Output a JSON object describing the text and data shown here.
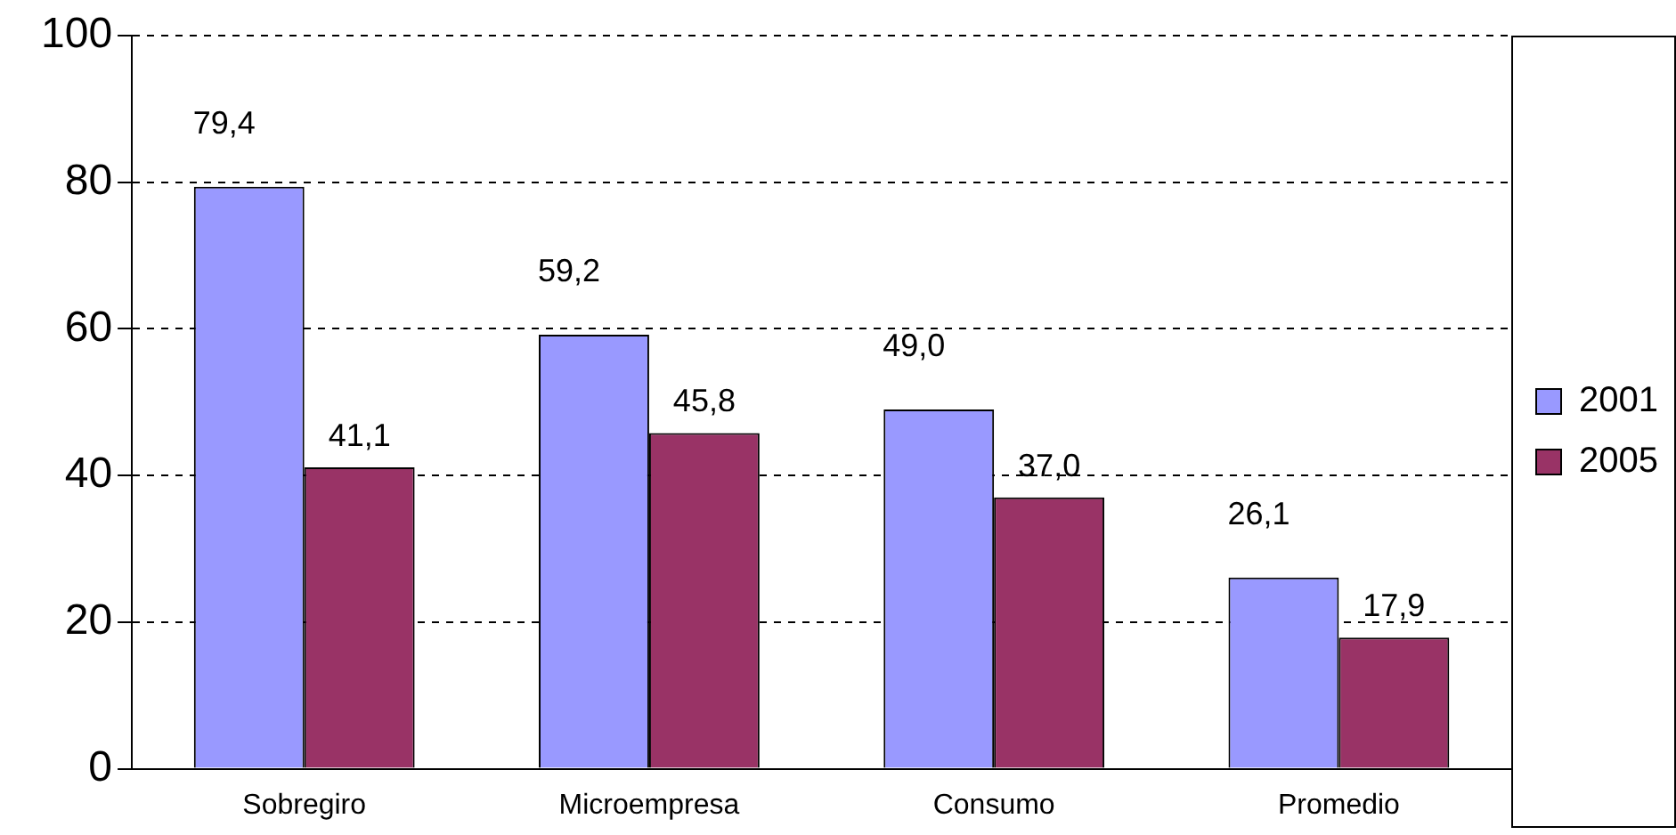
{
  "chart_data": {
    "type": "bar",
    "categories": [
      "Sobregiro",
      "Microempresa",
      "Consumo",
      "Promedio"
    ],
    "series": [
      {
        "name": "2001",
        "color": "#9999ff",
        "values": [
          79.4,
          59.2,
          49.0,
          26.1
        ],
        "value_labels": [
          "79,4",
          "59,2",
          "49,0",
          "26,1"
        ]
      },
      {
        "name": "2005",
        "color": "#993366",
        "values": [
          41.1,
          45.8,
          37.0,
          17.9
        ],
        "value_labels": [
          "41,1",
          "45,8",
          "37,0",
          "17,9"
        ]
      }
    ],
    "ylim": [
      0,
      100
    ],
    "yticks": [
      0,
      20,
      40,
      60,
      80,
      100
    ],
    "grid": "y",
    "legend": "right"
  }
}
